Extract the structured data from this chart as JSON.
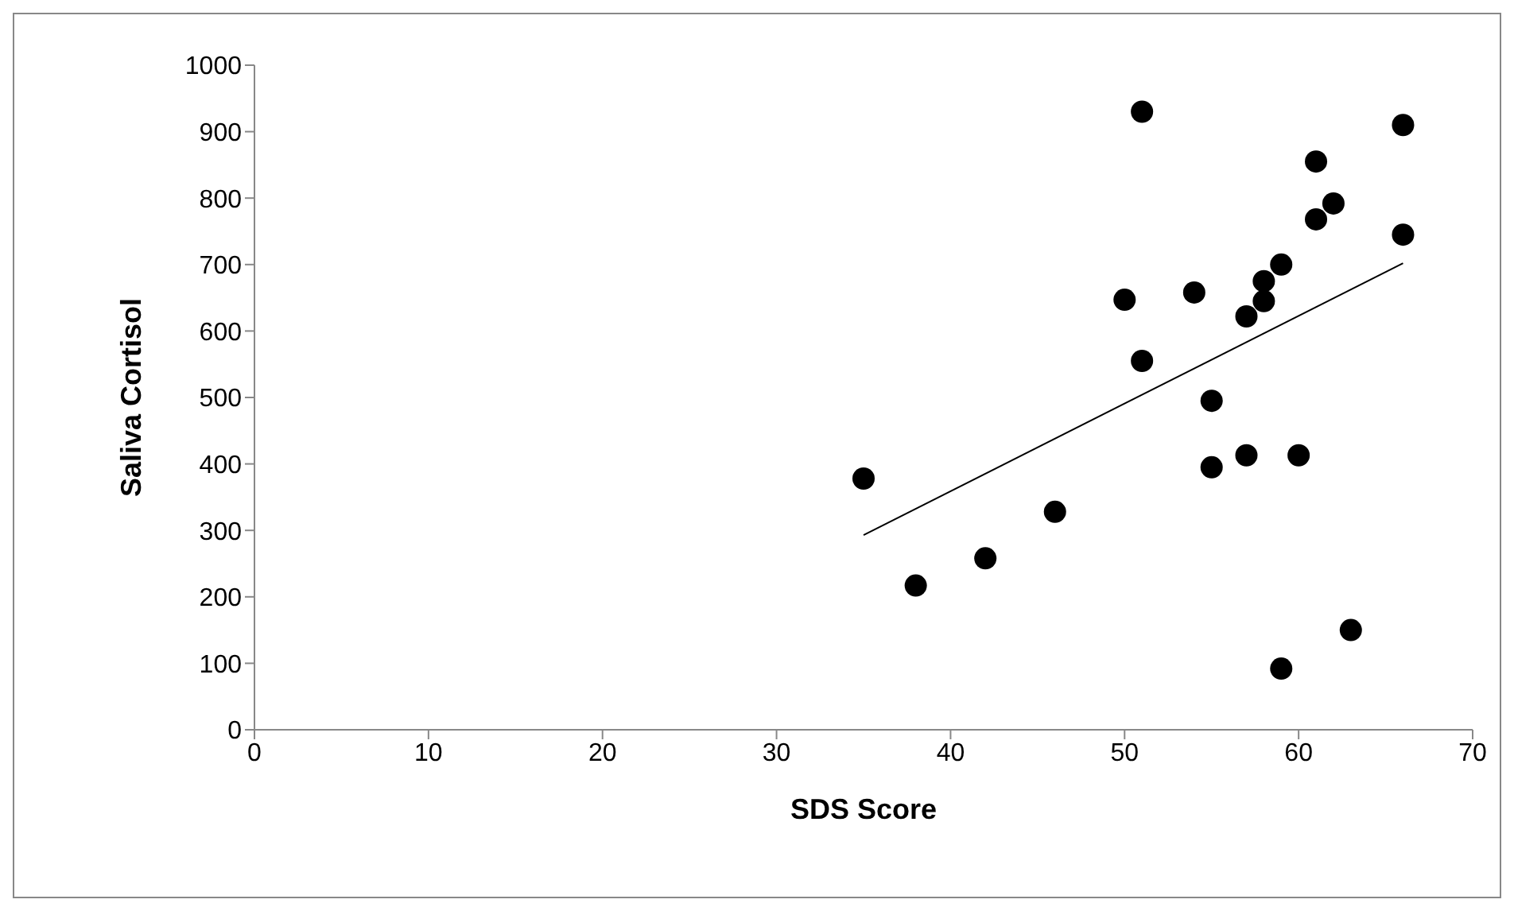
{
  "chart_data": {
    "type": "scatter",
    "xlabel": "SDS Score",
    "ylabel": "Saliva Cortisol",
    "xlim": [
      0,
      70
    ],
    "xticks": [
      0,
      10,
      20,
      30,
      40,
      50,
      60,
      70
    ],
    "ylim": [
      0,
      1000
    ],
    "yticks": [
      0,
      100,
      200,
      300,
      400,
      500,
      600,
      700,
      800,
      900,
      1000
    ],
    "marker": "circle",
    "series": [
      {
        "color": "#000000",
        "x": [
          35,
          38,
          42,
          46,
          50,
          51,
          51,
          54,
          55,
          55,
          57,
          57,
          58,
          58,
          59,
          59,
          60,
          61,
          61,
          62,
          63,
          66,
          66
        ],
        "values": [
          378,
          217,
          258,
          328,
          647,
          930,
          555,
          658,
          495,
          395,
          622,
          413,
          675,
          645,
          700,
          92,
          413,
          855,
          768,
          792,
          150,
          910,
          745
        ]
      },
      {
        "type": "line",
        "color": "#000000",
        "marker": "none",
        "x": [
          35,
          66
        ],
        "values": [
          293,
          702
        ]
      }
    ]
  }
}
